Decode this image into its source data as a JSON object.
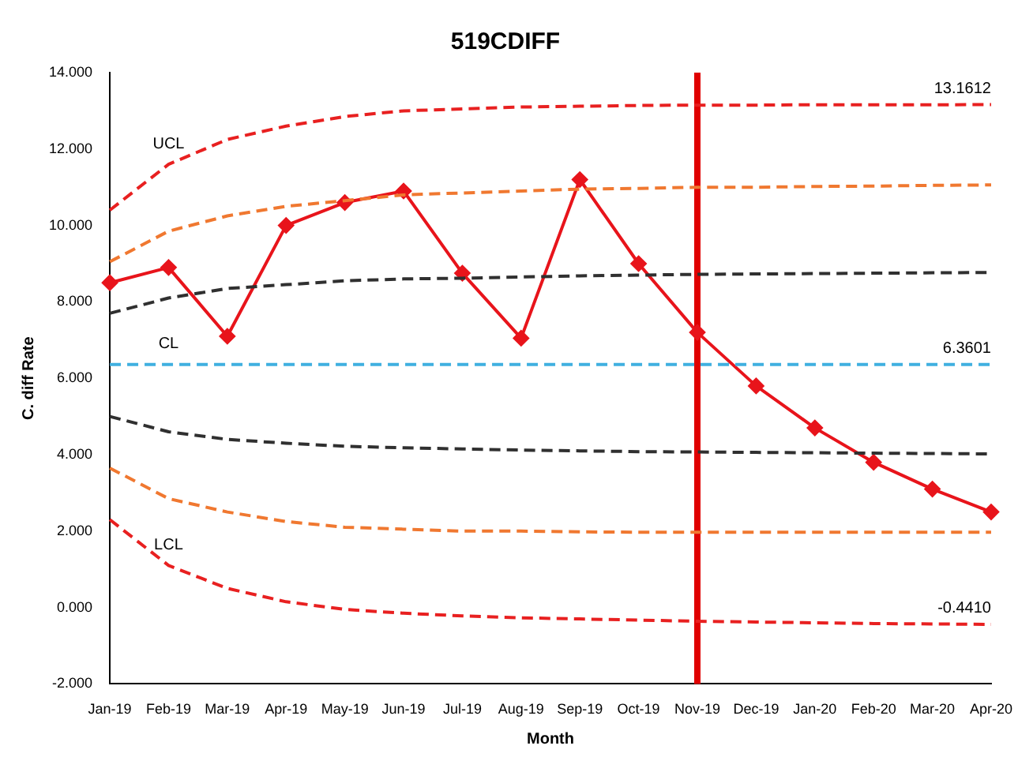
{
  "chart_data": {
    "type": "line",
    "title": "519CDIFF",
    "xlabel": "Month",
    "ylabel": "C. diff Rate",
    "categories": [
      "Jan-19",
      "Feb-19",
      "Mar-19",
      "Apr-19",
      "May-19",
      "Jun-19",
      "Jul-19",
      "Aug-19",
      "Sep-19",
      "Oct-19",
      "Nov-19",
      "Dec-19",
      "Jan-20",
      "Feb-20",
      "Mar-20",
      "Apr-20"
    ],
    "series": [
      {
        "name": "UCL",
        "value_labels": [
          null,
          null,
          null,
          null,
          null,
          null,
          null,
          null,
          null,
          null,
          null,
          null,
          null,
          null,
          null,
          "13.1612"
        ],
        "color": "#e82020",
        "line_style": "dashed",
        "marker": "none",
        "values": [
          10.4,
          11.6,
          12.25,
          12.6,
          12.85,
          13.0,
          13.05,
          13.1,
          13.12,
          13.14,
          13.15,
          13.15,
          13.16,
          13.16,
          13.16,
          13.1612
        ]
      },
      {
        "color": "#f07830",
        "line_style": "dashed",
        "marker": "none",
        "values": [
          9.05,
          9.85,
          10.25,
          10.5,
          10.65,
          10.8,
          10.85,
          10.9,
          10.95,
          10.97,
          11.0,
          11.0,
          11.02,
          11.03,
          11.05,
          11.06
        ]
      },
      {
        "color": "#303030",
        "line_style": "dashed",
        "marker": "none",
        "values": [
          7.7,
          8.1,
          8.35,
          8.45,
          8.55,
          8.6,
          8.62,
          8.65,
          8.68,
          8.7,
          8.72,
          8.73,
          8.74,
          8.75,
          8.76,
          8.77
        ]
      },
      {
        "name": "CL",
        "value_labels": [
          null,
          null,
          null,
          null,
          null,
          null,
          null,
          null,
          null,
          null,
          null,
          null,
          null,
          null,
          null,
          "6.3601"
        ],
        "color": "#40b0e0",
        "line_style": "dashed",
        "marker": "none",
        "values": [
          6.3601,
          6.3601,
          6.3601,
          6.3601,
          6.3601,
          6.3601,
          6.3601,
          6.3601,
          6.3601,
          6.3601,
          6.3601,
          6.3601,
          6.3601,
          6.3601,
          6.3601,
          6.3601
        ]
      },
      {
        "color": "#303030",
        "line_style": "dashed",
        "marker": "none",
        "values": [
          5.0,
          4.6,
          4.4,
          4.3,
          4.22,
          4.18,
          4.15,
          4.12,
          4.1,
          4.08,
          4.07,
          4.06,
          4.05,
          4.04,
          4.03,
          4.02
        ]
      },
      {
        "color": "#f07830",
        "line_style": "dashed",
        "marker": "none",
        "values": [
          3.65,
          2.85,
          2.5,
          2.25,
          2.1,
          2.05,
          2.0,
          2.0,
          1.98,
          1.97,
          1.97,
          1.97,
          1.97,
          1.97,
          1.97,
          1.97
        ]
      },
      {
        "name": "LCL",
        "value_labels": [
          null,
          null,
          null,
          null,
          null,
          null,
          null,
          null,
          null,
          null,
          null,
          null,
          null,
          null,
          null,
          "-0.4410"
        ],
        "color": "#e82020",
        "line_style": "dashed",
        "marker": "none",
        "values": [
          2.3,
          1.1,
          0.5,
          0.15,
          -0.05,
          -0.15,
          -0.22,
          -0.27,
          -0.3,
          -0.33,
          -0.36,
          -0.38,
          -0.4,
          -0.42,
          -0.43,
          -0.441
        ]
      },
      {
        "color": "#e8141b",
        "line_style": "solid",
        "marker": "diamond",
        "values": [
          8.5,
          8.9,
          7.1,
          10.0,
          10.6,
          10.9,
          8.75,
          7.05,
          11.2,
          9.0,
          7.2,
          5.8,
          4.7,
          3.8,
          3.1,
          2.5
        ]
      }
    ],
    "ylim": [
      -2,
      14
    ],
    "yticks": [
      {
        "value": -2,
        "label": "-2.000"
      },
      {
        "value": 0,
        "label": "0.000"
      },
      {
        "value": 2,
        "label": "2.000"
      },
      {
        "value": 4,
        "label": "4.000"
      },
      {
        "value": 6,
        "label": "6.000"
      },
      {
        "value": 8,
        "label": "8.000"
      },
      {
        "value": 10,
        "label": "10.000"
      },
      {
        "value": 12,
        "label": "12.000"
      },
      {
        "value": 14,
        "label": "14.000"
      }
    ],
    "ref_lines": [
      {
        "axis": "x",
        "value": "Nov-19",
        "color": "#e00000"
      }
    ],
    "grid": false,
    "legend": false
  }
}
